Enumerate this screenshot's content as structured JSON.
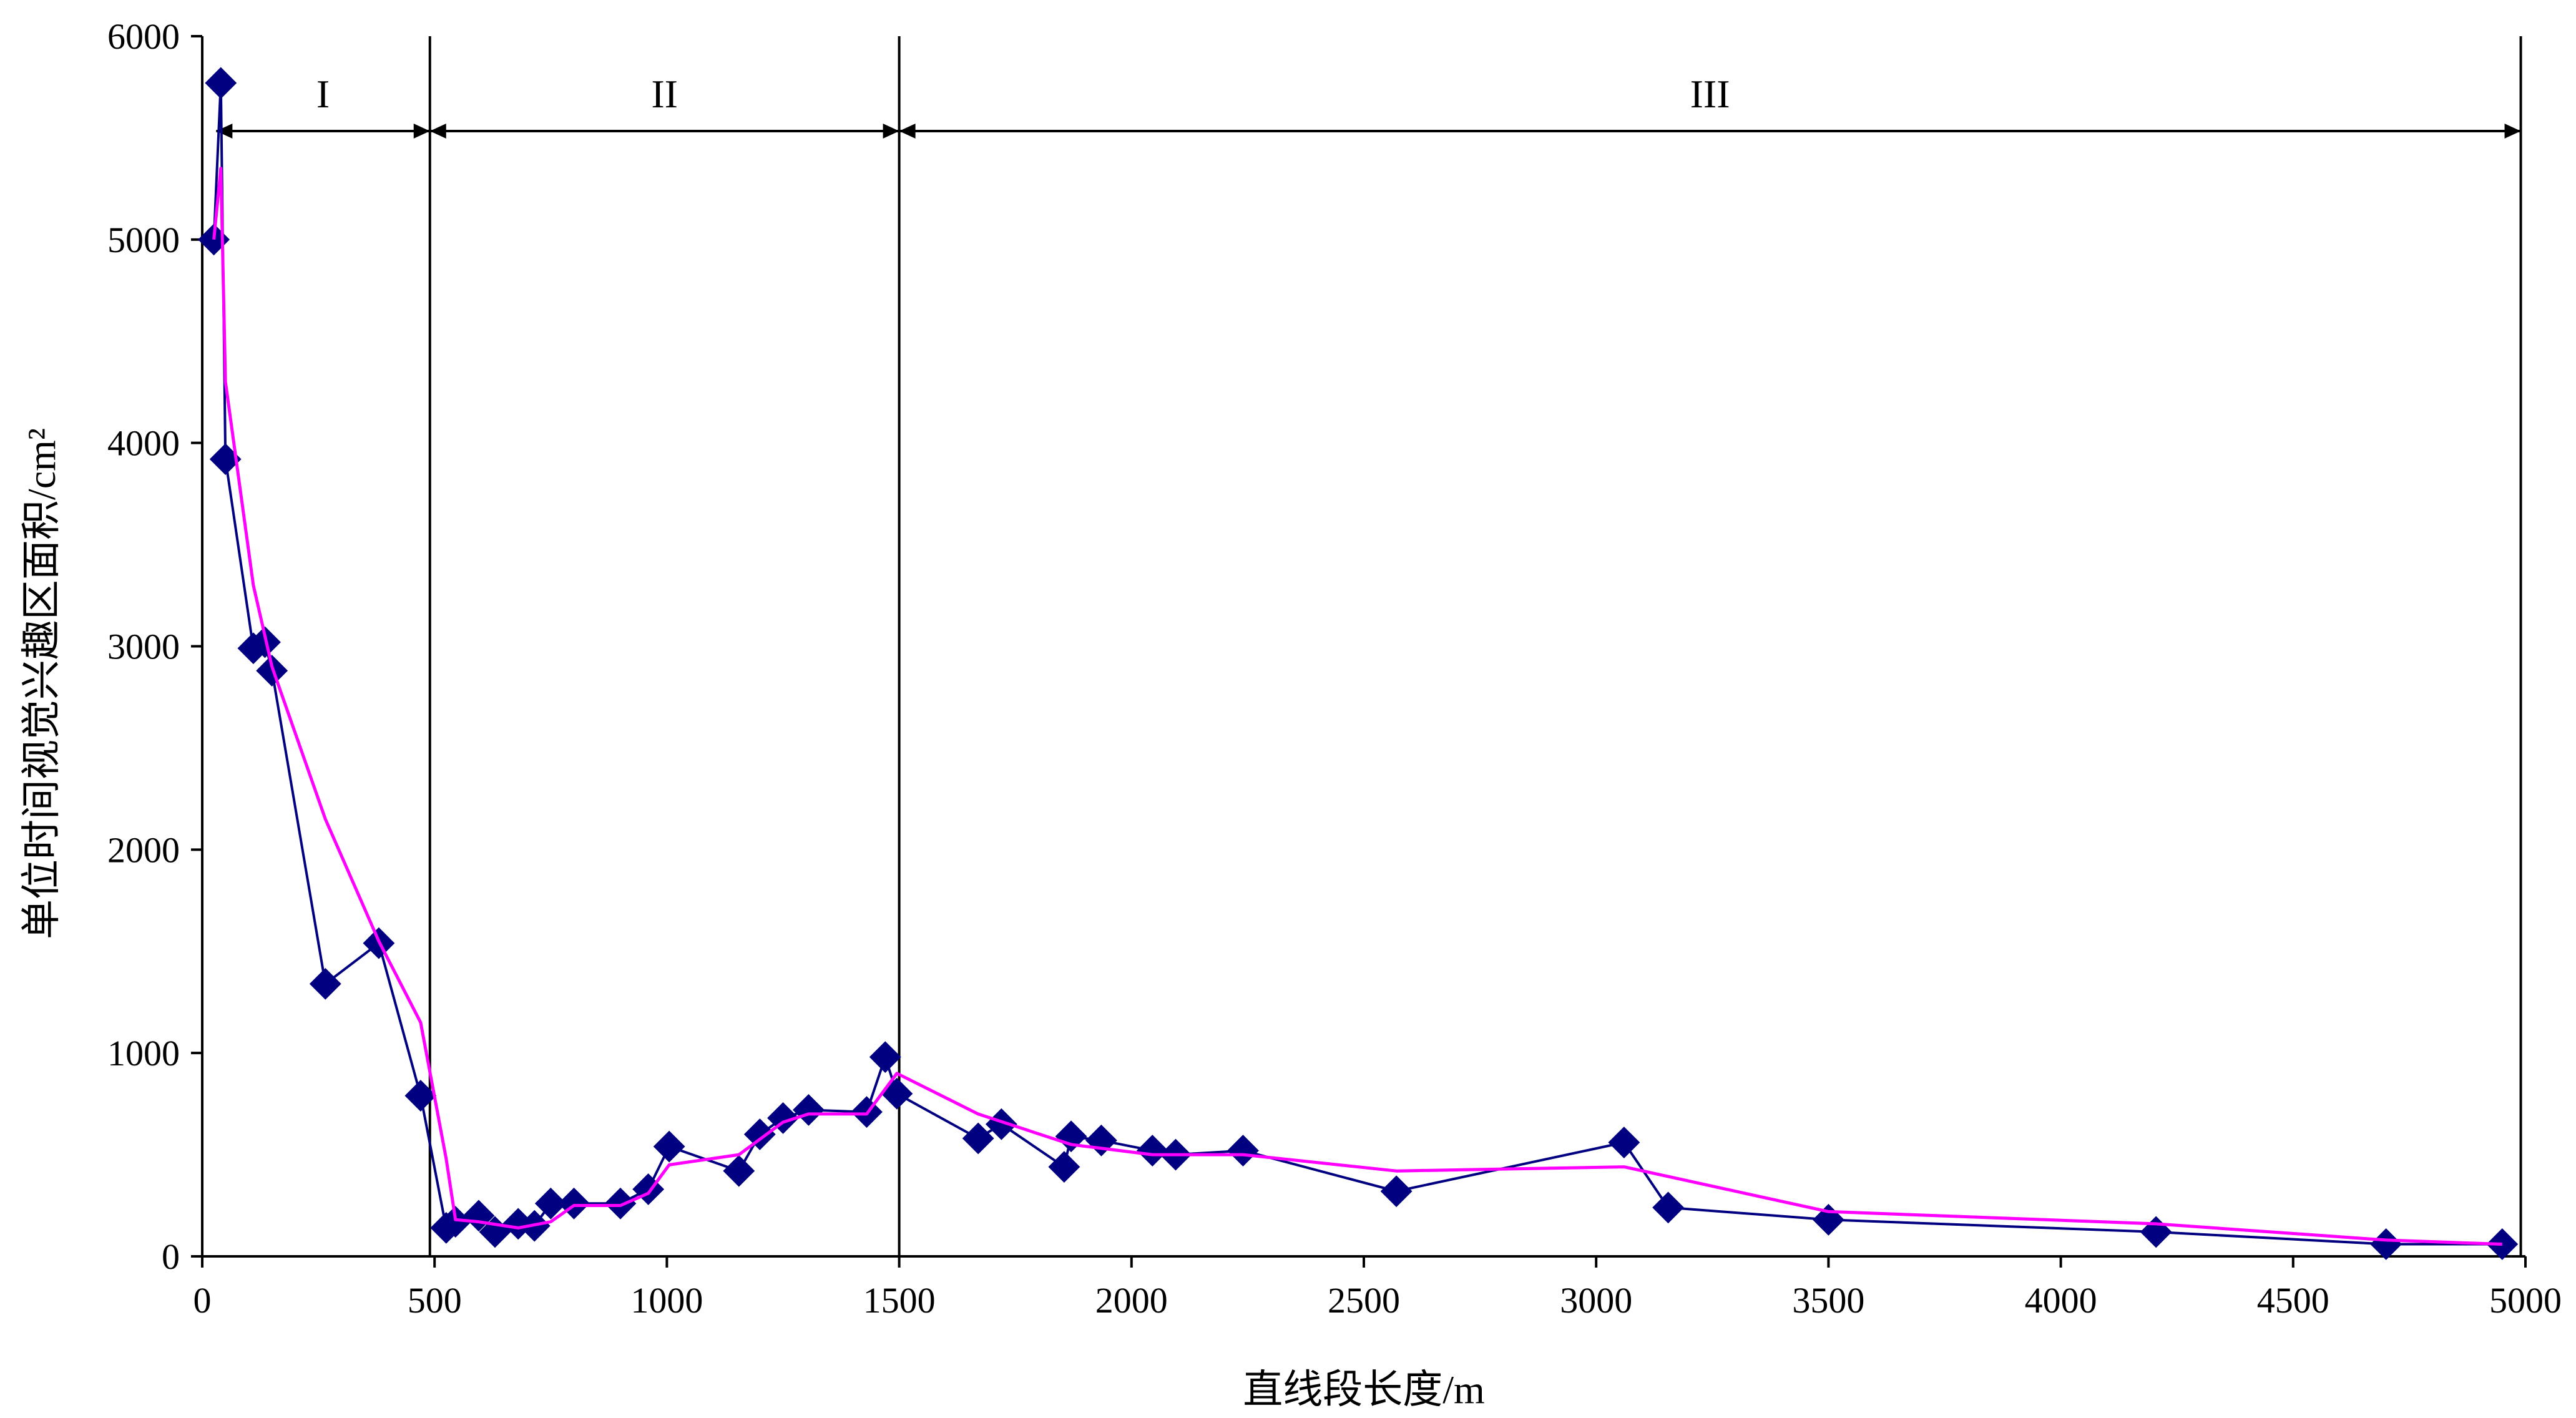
{
  "chart_data": {
    "type": "line",
    "xlabel": "直线段长度/m",
    "ylabel": "单位时间视觉兴趣区面积/cm²",
    "xlim": [
      0,
      5000
    ],
    "ylim": [
      0,
      6000
    ],
    "x_ticks": [
      "0",
      "500",
      "1000",
      "1500",
      "2000",
      "2500",
      "3000",
      "3500",
      "4000",
      "4500",
      "5000"
    ],
    "y_ticks": [
      "0",
      "1000",
      "2000",
      "3000",
      "4000",
      "5000",
      "6000"
    ],
    "grid": false,
    "legend": "none",
    "regions": [
      {
        "label": "I",
        "x_start": 30,
        "x_end": 490
      },
      {
        "label": "II",
        "x_start": 490,
        "x_end": 1500
      },
      {
        "label": "III",
        "x_start": 1500,
        "x_end": 4990
      }
    ],
    "region_dividers": [
      490,
      1500,
      4990
    ],
    "series": [
      {
        "color": "#000080",
        "marker": "diamond",
        "x": [
          25,
          40,
          50,
          110,
          135,
          150,
          265,
          380,
          470,
          525,
          545,
          595,
          630,
          680,
          715,
          750,
          800,
          900,
          960,
          1005,
          1155,
          1200,
          1250,
          1305,
          1430,
          1470,
          1495,
          1670,
          1720,
          1855,
          1870,
          1935,
          2045,
          2095,
          2240,
          2570,
          3060,
          3155,
          3500,
          4205,
          4700,
          4950
        ],
        "y": [
          5000,
          5770,
          3920,
          2990,
          3020,
          2880,
          1340,
          1540,
          790,
          140,
          170,
          200,
          120,
          160,
          150,
          260,
          260,
          260,
          330,
          540,
          420,
          600,
          680,
          720,
          710,
          980,
          800,
          580,
          650,
          440,
          590,
          570,
          520,
          500,
          520,
          320,
          560,
          240,
          180,
          120,
          60,
          60
        ]
      },
      {
        "color": "#ff00ff",
        "marker": "none",
        "x": [
          25,
          40,
          50,
          110,
          150,
          265,
          380,
          470,
          525,
          545,
          595,
          680,
          750,
          800,
          900,
          960,
          1005,
          1155,
          1250,
          1305,
          1430,
          1495,
          1670,
          1870,
          2045,
          2240,
          2570,
          3060,
          3500,
          4205,
          4700,
          4950
        ],
        "y": [
          5000,
          5350,
          4300,
          3300,
          2900,
          2150,
          1550,
          1150,
          480,
          180,
          170,
          140,
          170,
          250,
          250,
          310,
          450,
          500,
          660,
          700,
          700,
          900,
          700,
          550,
          500,
          500,
          420,
          440,
          220,
          160,
          80,
          60
        ]
      }
    ]
  }
}
